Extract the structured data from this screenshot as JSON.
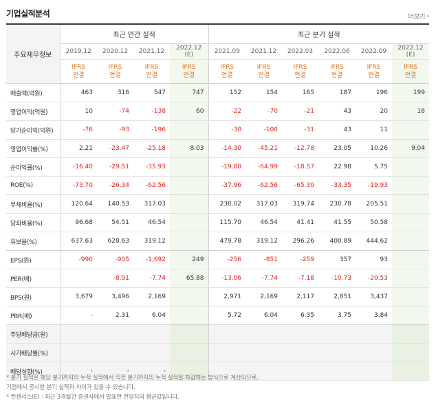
{
  "title": "기업실적분석",
  "more_label": "더보기",
  "more_icon": "chevron-right-icon",
  "corner_label": "주요재무정보",
  "group_labels": {
    "annual": "최근 연간 실적",
    "quarterly": "최근 분기 실적"
  },
  "periods": [
    {
      "label": "2019.12",
      "basis": "IFRS\n연결"
    },
    {
      "label": "2020.12",
      "basis": "IFRS\n연결"
    },
    {
      "label": "2021.12",
      "basis": "IFRS\n연결"
    },
    {
      "label": "2022.12\n(E)",
      "basis": "IFRS\n연결"
    },
    {
      "label": "2021.09",
      "basis": "IFRS\n연결"
    },
    {
      "label": "2021.12",
      "basis": "IFRS\n연결"
    },
    {
      "label": "2022.03",
      "basis": "IFRS\n연결"
    },
    {
      "label": "2022.06",
      "basis": "IFRS\n연결"
    },
    {
      "label": "2022.09",
      "basis": "IFRS\n연결"
    },
    {
      "label": "2022.12\n(E)",
      "basis": "IFRS\n연결"
    }
  ],
  "rows": [
    {
      "label": "매출액(억원)",
      "values": [
        "463",
        "316",
        "547",
        "747",
        "152",
        "154",
        "165",
        "187",
        "196",
        "199"
      ]
    },
    {
      "label": "영업이익(억원)",
      "values": [
        "10",
        "-74",
        "-138",
        "60",
        "-22",
        "-70",
        "-21",
        "43",
        "20",
        "18"
      ]
    },
    {
      "label": "당기순이익(억원)",
      "values": [
        "-76",
        "-93",
        "-196",
        "",
        "-30",
        "-100",
        "-31",
        "43",
        "11",
        ""
      ]
    },
    {
      "label": "영업이익률(%)",
      "values": [
        "2.21",
        "-23.47",
        "-25.18",
        "8.03",
        "-14.30",
        "-45.21",
        "-12.78",
        "23.05",
        "10.26",
        "9.04"
      ]
    },
    {
      "label": "순이익률(%)",
      "values": [
        "-16.40",
        "-29.51",
        "-35.93",
        "",
        "-19.80",
        "-64.99",
        "-18.57",
        "22.98",
        "5.75",
        ""
      ]
    },
    {
      "label": "ROE(%)",
      "values": [
        "-73.70",
        "-26.34",
        "-62.56",
        "",
        "-37.96",
        "-62.56",
        "-65.30",
        "-33.35",
        "-19.93",
        ""
      ]
    },
    {
      "label": "부채비율(%)",
      "values": [
        "120.64",
        "140.53",
        "317.03",
        "",
        "230.02",
        "317.03",
        "319.74",
        "230.78",
        "205.51",
        ""
      ]
    },
    {
      "label": "당좌비율(%)",
      "values": [
        "96.68",
        "54.51",
        "46.54",
        "",
        "115.70",
        "46.54",
        "41.41",
        "41.55",
        "50.58",
        ""
      ]
    },
    {
      "label": "유보율(%)",
      "values": [
        "637.63",
        "628.63",
        "319.12",
        "",
        "479.78",
        "319.12",
        "296.26",
        "400.89",
        "444.62",
        ""
      ]
    },
    {
      "label": "EPS(원)",
      "values": [
        "-990",
        "-905",
        "-1,692",
        "249",
        "-256",
        "-851",
        "-259",
        "357",
        "93",
        ""
      ]
    },
    {
      "label": "PER(배)",
      "values": [
        "",
        "-8.91",
        "-7.74",
        "65.88",
        "-13.06",
        "-7.74",
        "-7.18",
        "-10.73",
        "-20.53",
        ""
      ]
    },
    {
      "label": "BPS(원)",
      "values": [
        "3,679",
        "3,496",
        "2,169",
        "",
        "2,971",
        "2,169",
        "2,117",
        "2,851",
        "3,437",
        ""
      ]
    },
    {
      "label": "PBR(배)",
      "values": [
        "-",
        "2.31",
        "6.04",
        "",
        "5.72",
        "6.04",
        "6.35",
        "3.75",
        "3.84",
        ""
      ]
    },
    {
      "label": "주당배당금(원)",
      "values": [
        "",
        "",
        "",
        "",
        "",
        "",
        "",
        "",
        "",
        ""
      ]
    },
    {
      "label": "시가배당률(%)",
      "values": [
        "",
        "",
        "",
        "",
        "",
        "",
        "",
        "",
        "",
        ""
      ]
    },
    {
      "label": "배당성향(%)",
      "values": [
        "-",
        "-",
        "-",
        "",
        "",
        "",
        "",
        "",
        "",
        ""
      ]
    }
  ],
  "notes": [
    "* 분기 실적은 해당 분기까지의 누적 실적에서 직전 분기까지의 누적 실적을 차감하는 방식으로 계산되므로,",
    "   기업에서 공시한 분기 실적과 차이가 있을 수 있습니다.",
    "* 컨센서스(E) : 최근 3개월간 증권사에서 발표한 전망치의 평균값입니다."
  ],
  "colors": {
    "negative": "#e0221a",
    "basis": "#e5731b",
    "estimate_bg": "#f2f8ee",
    "alt_bg": "#f4f4f4"
  }
}
